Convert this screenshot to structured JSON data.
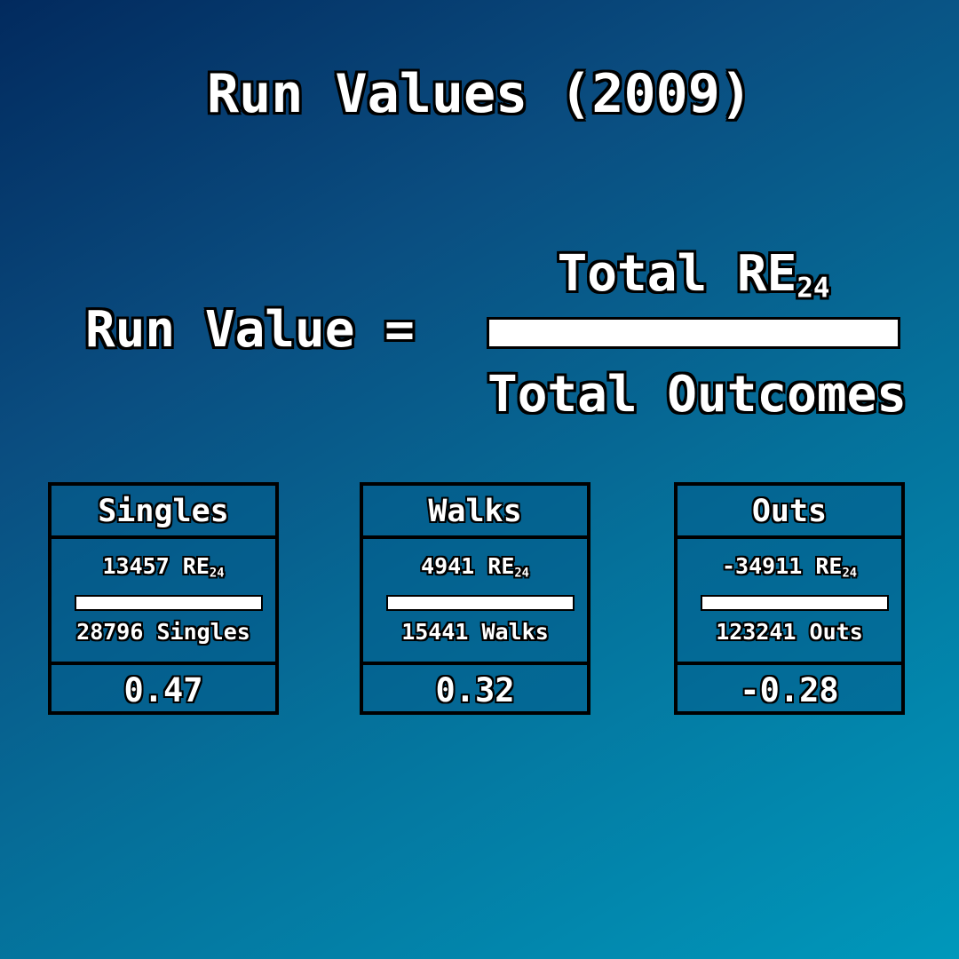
{
  "title": "Run Values (2009)",
  "formula": {
    "lhs": "Run Value =",
    "numerator": "Total RE",
    "numerator_sub": "24",
    "denominator": "Total Outcomes"
  },
  "cards": [
    {
      "name": "Singles",
      "re24_value": "13457 RE",
      "re24_sub": "24",
      "outcomes": "28796 Singles",
      "run_value": "0.47"
    },
    {
      "name": "Walks",
      "re24_value": "4941 RE",
      "re24_sub": "24",
      "outcomes": "15441 Walks",
      "run_value": "0.32"
    },
    {
      "name": "Outs",
      "re24_value": "-34911 RE",
      "re24_sub": "24",
      "outcomes": "123241 Outs",
      "run_value": "-0.28"
    }
  ],
  "colors": {
    "background_top": "#022a5e",
    "background_bottom": "#0098bb",
    "text": "#ffffff",
    "outline": "#000000"
  }
}
